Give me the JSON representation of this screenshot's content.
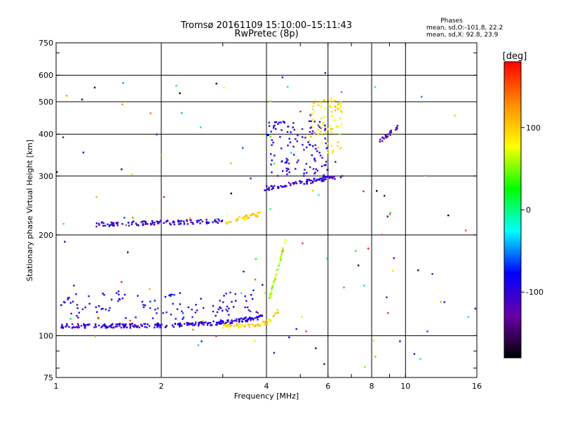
{
  "chart_data": {
    "type": "scatter",
    "title": "Tromsø 20161109 15:10:00–15:11:43",
    "subtitle": "RwPretec (8p)",
    "xlabel": "Frequency [MHz]",
    "ylabel": "Stationary phase Virtual Height [km]",
    "x_scale": "log",
    "y_scale": "log",
    "xlim": [
      1,
      16
    ],
    "ylim": [
      75,
      750
    ],
    "x_ticks": [
      1,
      2,
      4,
      6,
      8,
      10,
      16
    ],
    "x_tick_labels": [
      "1",
      "2",
      "4",
      "6",
      "8",
      "10",
      "16"
    ],
    "y_ticks": [
      75,
      100,
      200,
      300,
      400,
      500,
      600,
      750
    ],
    "y_tick_labels": [
      "75",
      "100",
      "200",
      "300",
      "400",
      "500",
      "600",
      "750"
    ],
    "grid": true,
    "phase_stats": {
      "heading": "Phases",
      "line_o": "mean, sd,O:-101.8, 22.2",
      "line_x": "mean, sd,X:  92.8, 23.9"
    },
    "colorbar": {
      "unit_label": "[deg]",
      "range": [
        -180,
        180
      ],
      "ticks": [
        100,
        0,
        -100
      ],
      "tick_labels": [
        "100",
        "0",
        "-100"
      ],
      "colors": [
        "#ff0000",
        "#ff8c00",
        "#ffff00",
        "#00ff00",
        "#00ffff",
        "#0000ff",
        "#6a00a8",
        "#000000"
      ]
    },
    "traces": [
      {
        "x0": 1.03,
        "x1": 3.9,
        "y0": 107,
        "y1": 114,
        "phase": -100,
        "n": 260,
        "curve": 1.6
      },
      {
        "x0": 3.0,
        "x1": 4.35,
        "y0": 107,
        "y1": 120,
        "phase": 95,
        "n": 60,
        "curve": 2.5
      },
      {
        "x0": 1.03,
        "x1": 3.9,
        "y0": 112,
        "y1": 135,
        "phase": -90,
        "n": 110,
        "curve": 0,
        "spread": 1
      },
      {
        "x0": 4.05,
        "x1": 4.55,
        "y0": 125,
        "y1": 195,
        "phase": 60,
        "n": 40,
        "curve": 0
      },
      {
        "x0": 1.3,
        "x1": 3.0,
        "y0": 215,
        "y1": 220,
        "phase": -100,
        "n": 120,
        "curve": 0
      },
      {
        "x0": 3.05,
        "x1": 3.9,
        "y0": 218,
        "y1": 232,
        "phase": 95,
        "n": 35,
        "curve": 0
      },
      {
        "x0": 3.95,
        "x1": 6.6,
        "y0": 275,
        "y1": 300,
        "phase": -105,
        "n": 90,
        "curve": 0
      },
      {
        "x0": 4.0,
        "x1": 6.0,
        "y0": 300,
        "y1": 440,
        "phase": -100,
        "n": 120,
        "curve": 0,
        "spread": 1
      },
      {
        "x0": 5.3,
        "x1": 6.6,
        "y0": 350,
        "y1": 510,
        "phase": 90,
        "n": 80,
        "curve": 0,
        "spread": 1
      },
      {
        "x0": 8.3,
        "x1": 9.5,
        "y0": 375,
        "y1": 420,
        "phase": -120,
        "n": 25,
        "curve": 0
      },
      {
        "x0": 1.0,
        "x1": 16,
        "y0": 80,
        "y1": 620,
        "phase": 0,
        "n": 120,
        "curve": 0,
        "spread": 1,
        "random_phase": 1
      }
    ]
  }
}
